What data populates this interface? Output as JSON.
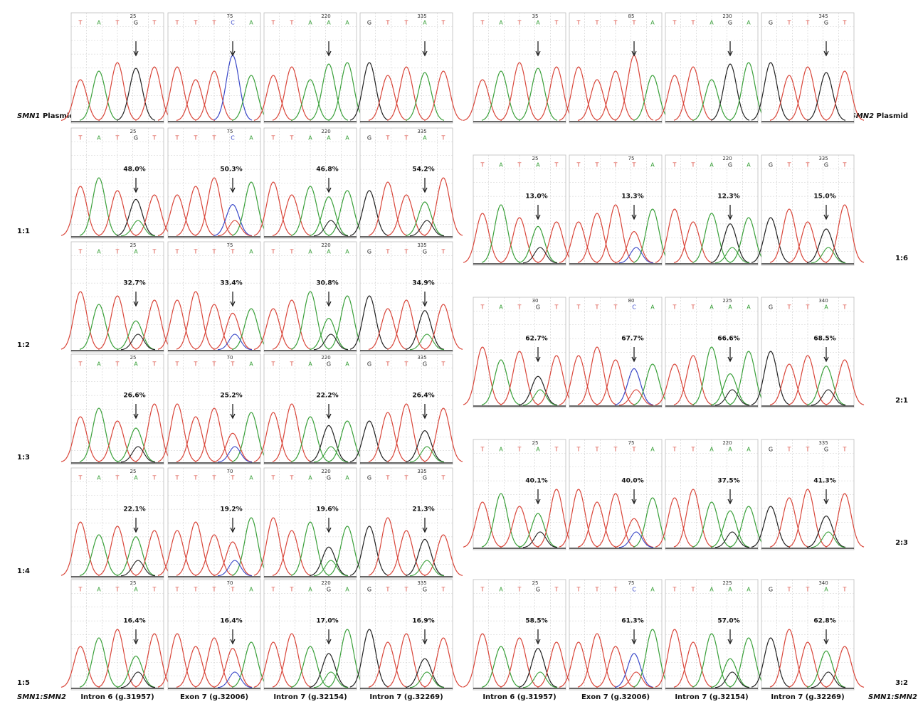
{
  "left": {
    "ratio_label": "SMN1:SMN2",
    "columns": [
      "Intron 6 (g.31957)",
      "Exon 7 (g.32006)",
      "Intron 7 (g.32154)",
      "Intron 7 (g.32269)"
    ],
    "rows": [
      {
        "gene": "SMN1",
        "label": "Plasmid",
        "panels": [
          {
            "bases": [
              "T",
              "A",
              "T",
              "G",
              "T"
            ],
            "position": "25"
          },
          {
            "bases": [
              "T",
              "T",
              "T",
              "C",
              "A"
            ],
            "position": "75"
          },
          {
            "bases": [
              "T",
              "T",
              "A",
              "A",
              "A"
            ],
            "position": "220"
          },
          {
            "bases": [
              "G",
              "T",
              "T",
              "A",
              "T"
            ],
            "position": "335"
          }
        ]
      },
      {
        "label": "1:1",
        "panels": [
          {
            "bases": [
              "T",
              "A",
              "T",
              "G",
              "T"
            ],
            "position": "25",
            "percent": "48.0%"
          },
          {
            "bases": [
              "T",
              "T",
              "T",
              "C",
              "A"
            ],
            "position": "75",
            "percent": "50.3%"
          },
          {
            "bases": [
              "T",
              "T",
              "A",
              "A",
              "A"
            ],
            "position": "220",
            "percent": "46.8%"
          },
          {
            "bases": [
              "G",
              "T",
              "T",
              "A",
              "T"
            ],
            "position": "335",
            "percent": "54.2%"
          }
        ]
      },
      {
        "label": "1:2",
        "panels": [
          {
            "bases": [
              "T",
              "A",
              "T",
              "A",
              "T"
            ],
            "position": "25",
            "percent": "32.7%"
          },
          {
            "bases": [
              "T",
              "T",
              "T",
              "T",
              "A"
            ],
            "position": "75",
            "percent": "33.4%"
          },
          {
            "bases": [
              "T",
              "T",
              "A",
              "A",
              "A"
            ],
            "position": "220",
            "percent": "30.8%"
          },
          {
            "bases": [
              "G",
              "T",
              "T",
              "G",
              "T"
            ],
            "position": "335",
            "percent": "34.9%"
          }
        ]
      },
      {
        "label": "1:3",
        "panels": [
          {
            "bases": [
              "T",
              "A",
              "T",
              "A",
              "T"
            ],
            "position": "25",
            "percent": "26.6%"
          },
          {
            "bases": [
              "T",
              "T",
              "T",
              "T",
              "A"
            ],
            "position": "70",
            "percent": "25.2%"
          },
          {
            "bases": [
              "T",
              "T",
              "A",
              "G",
              "A"
            ],
            "position": "220",
            "percent": "22.2%"
          },
          {
            "bases": [
              "G",
              "T",
              "T",
              "G",
              "T"
            ],
            "position": "335",
            "percent": "26.4%"
          }
        ]
      },
      {
        "label": "1:4",
        "panels": [
          {
            "bases": [
              "T",
              "A",
              "T",
              "A",
              "T"
            ],
            "position": "25",
            "percent": "22.1%"
          },
          {
            "bases": [
              "T",
              "T",
              "T",
              "T",
              "A"
            ],
            "position": "70",
            "percent": "19.2%"
          },
          {
            "bases": [
              "T",
              "T",
              "A",
              "G",
              "A"
            ],
            "position": "220",
            "percent": "19.6%"
          },
          {
            "bases": [
              "G",
              "T",
              "T",
              "G",
              "T"
            ],
            "position": "335",
            "percent": "21.3%"
          }
        ]
      },
      {
        "label": "1:5",
        "panels": [
          {
            "bases": [
              "T",
              "A",
              "T",
              "A",
              "T"
            ],
            "position": "25",
            "percent": "16.4%"
          },
          {
            "bases": [
              "T",
              "T",
              "T",
              "T",
              "A"
            ],
            "position": "70",
            "percent": "16.4%"
          },
          {
            "bases": [
              "T",
              "T",
              "A",
              "G",
              "A"
            ],
            "position": "220",
            "percent": "17.0%"
          },
          {
            "bases": [
              "G",
              "T",
              "T",
              "G",
              "T"
            ],
            "position": "335",
            "percent": "16.9%"
          }
        ]
      }
    ]
  },
  "right": {
    "ratio_label": "SMN1:SMN2",
    "columns": [
      "Intron 6 (g.31957)",
      "Exon 7 (g.32006)",
      "Intron 7 (g.32154)",
      "Intron 7 (g.32269)"
    ],
    "rows": [
      {
        "gene": "SMN2",
        "label": "Plasmid",
        "panels": [
          {
            "bases": [
              "T",
              "A",
              "T",
              "A",
              "T"
            ],
            "position": "35"
          },
          {
            "bases": [
              "T",
              "T",
              "T",
              "T",
              "A"
            ],
            "position": "85"
          },
          {
            "bases": [
              "T",
              "T",
              "A",
              "G",
              "A"
            ],
            "position": "230"
          },
          {
            "bases": [
              "G",
              "T",
              "T",
              "G",
              "T"
            ],
            "position": "345"
          }
        ]
      },
      {
        "label": "1:6",
        "panels": [
          {
            "bases": [
              "T",
              "A",
              "T",
              "A",
              "T"
            ],
            "position": "25",
            "percent": "13.0%"
          },
          {
            "bases": [
              "T",
              "T",
              "T",
              "T",
              "A"
            ],
            "position": "75",
            "percent": "13.3%"
          },
          {
            "bases": [
              "T",
              "T",
              "A",
              "G",
              "A"
            ],
            "position": "220",
            "percent": "12.3%"
          },
          {
            "bases": [
              "G",
              "T",
              "T",
              "G",
              "T"
            ],
            "position": "335",
            "percent": "15.0%"
          }
        ]
      },
      {
        "label": "2:1",
        "panels": [
          {
            "bases": [
              "T",
              "A",
              "T",
              "G",
              "T"
            ],
            "position": "30",
            "percent": "62.7%"
          },
          {
            "bases": [
              "T",
              "T",
              "T",
              "C",
              "A"
            ],
            "position": "80",
            "percent": "67.7%"
          },
          {
            "bases": [
              "T",
              "T",
              "A",
              "A",
              "A"
            ],
            "position": "225",
            "percent": "66.6%"
          },
          {
            "bases": [
              "G",
              "T",
              "T",
              "A",
              "T"
            ],
            "position": "340",
            "percent": "68.5%"
          }
        ]
      },
      {
        "label": "2:3",
        "panels": [
          {
            "bases": [
              "T",
              "A",
              "T",
              "A",
              "T"
            ],
            "position": "25",
            "percent": "40.1%"
          },
          {
            "bases": [
              "T",
              "T",
              "T",
              "T",
              "A"
            ],
            "position": "75",
            "percent": "40.0%"
          },
          {
            "bases": [
              "T",
              "T",
              "A",
              "A",
              "A"
            ],
            "position": "220",
            "percent": "37.5%"
          },
          {
            "bases": [
              "G",
              "T",
              "T",
              "G",
              "T"
            ],
            "position": "335",
            "percent": "41.3%"
          }
        ]
      },
      {
        "label": "3:2",
        "panels": [
          {
            "bases": [
              "T",
              "A",
              "T",
              "G",
              "T"
            ],
            "position": "25",
            "percent": "58.5%"
          },
          {
            "bases": [
              "T",
              "T",
              "T",
              "C",
              "A"
            ],
            "position": "75",
            "percent": "61.3%"
          },
          {
            "bases": [
              "T",
              "T",
              "A",
              "A",
              "A"
            ],
            "position": "225",
            "percent": "57.0%"
          },
          {
            "bases": [
              "G",
              "T",
              "T",
              "A",
              "T"
            ],
            "position": "340",
            "percent": "62.8%"
          }
        ]
      }
    ]
  }
}
